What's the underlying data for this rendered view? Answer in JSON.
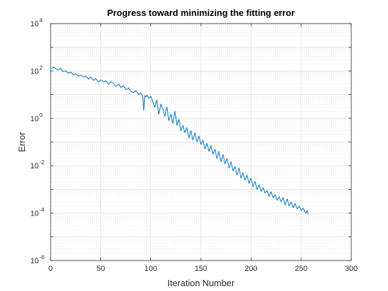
{
  "chart_data": {
    "type": "line",
    "title": "Progress toward minimizing the fitting error",
    "xlabel": "Iteration Number",
    "ylabel": "Error",
    "xlim": [
      0,
      300
    ],
    "ylim": [
      1e-06,
      10000
    ],
    "yscale": "log",
    "grid": true,
    "minor_grid": true,
    "xticks": [
      0,
      50,
      100,
      150,
      200,
      250,
      300
    ],
    "yticks": [
      {
        "base": "10",
        "exp": "-6",
        "value": 1e-06
      },
      {
        "base": "10",
        "exp": "-4",
        "value": 0.0001
      },
      {
        "base": "10",
        "exp": "-2",
        "value": 0.01
      },
      {
        "base": "10",
        "exp": "0",
        "value": 1
      },
      {
        "base": "10",
        "exp": "2",
        "value": 100
      },
      {
        "base": "10",
        "exp": "4",
        "value": 10000
      }
    ],
    "series": [
      {
        "color": "#0072BD",
        "x": [
          1,
          3,
          5,
          8,
          10,
          12,
          15,
          18,
          20,
          23,
          25,
          28,
          30,
          33,
          35,
          38,
          40,
          43,
          45,
          48,
          50,
          53,
          55,
          58,
          60,
          63,
          65,
          68,
          70,
          73,
          75,
          78,
          80,
          83,
          85,
          88,
          90,
          92,
          93,
          94,
          95,
          96,
          98,
          100,
          102,
          104,
          106,
          108,
          110,
          112,
          114,
          116,
          118,
          120,
          122,
          124,
          126,
          128,
          130,
          132,
          134,
          136,
          138,
          140,
          142,
          144,
          146,
          148,
          150,
          152,
          154,
          156,
          158,
          160,
          162,
          164,
          166,
          168,
          170,
          172,
          174,
          176,
          178,
          180,
          182,
          184,
          186,
          188,
          190,
          192,
          194,
          196,
          198,
          200,
          202,
          204,
          206,
          208,
          210,
          212,
          214,
          216,
          218,
          220,
          222,
          224,
          226,
          228,
          230,
          232,
          234,
          236,
          238,
          240,
          242,
          244,
          246,
          248,
          250,
          252,
          254,
          255,
          256,
          257
        ],
        "y": [
          120,
          150,
          125,
          110,
          130,
          95,
          100,
          80,
          90,
          70,
          75,
          60,
          68,
          55,
          62,
          45,
          55,
          40,
          48,
          33,
          42,
          35,
          38,
          28,
          35,
          30,
          22,
          28,
          20,
          24,
          16,
          19,
          14,
          12,
          15,
          10,
          12,
          8,
          2.2,
          9,
          8,
          9.5,
          7,
          8.5,
          5,
          3,
          6,
          1.5,
          4,
          2.5,
          1.2,
          3,
          0.8,
          1.5,
          0.6,
          2,
          0.5,
          0.9,
          0.3,
          0.5,
          0.25,
          0.4,
          0.15,
          0.3,
          0.12,
          0.25,
          0.1,
          0.18,
          0.08,
          0.12,
          0.05,
          0.09,
          0.04,
          0.07,
          0.03,
          0.05,
          0.02,
          0.04,
          0.015,
          0.03,
          0.012,
          0.02,
          0.008,
          0.015,
          0.006,
          0.009,
          0.004,
          0.008,
          0.003,
          0.005,
          0.0025,
          0.004,
          0.0018,
          0.003,
          0.0013,
          0.0022,
          0.001,
          0.0016,
          0.0008,
          0.0012,
          0.0007,
          0.0009,
          0.0005,
          0.0008,
          0.00045,
          0.0006,
          0.00035,
          0.0005,
          0.0003,
          0.00045,
          0.00022,
          0.0004,
          0.0002,
          0.0003,
          0.00017,
          0.00025,
          0.00015,
          0.0002,
          0.00013,
          0.00016,
          0.00011,
          0.0001,
          0.00013,
          9e-05
        ]
      }
    ]
  }
}
